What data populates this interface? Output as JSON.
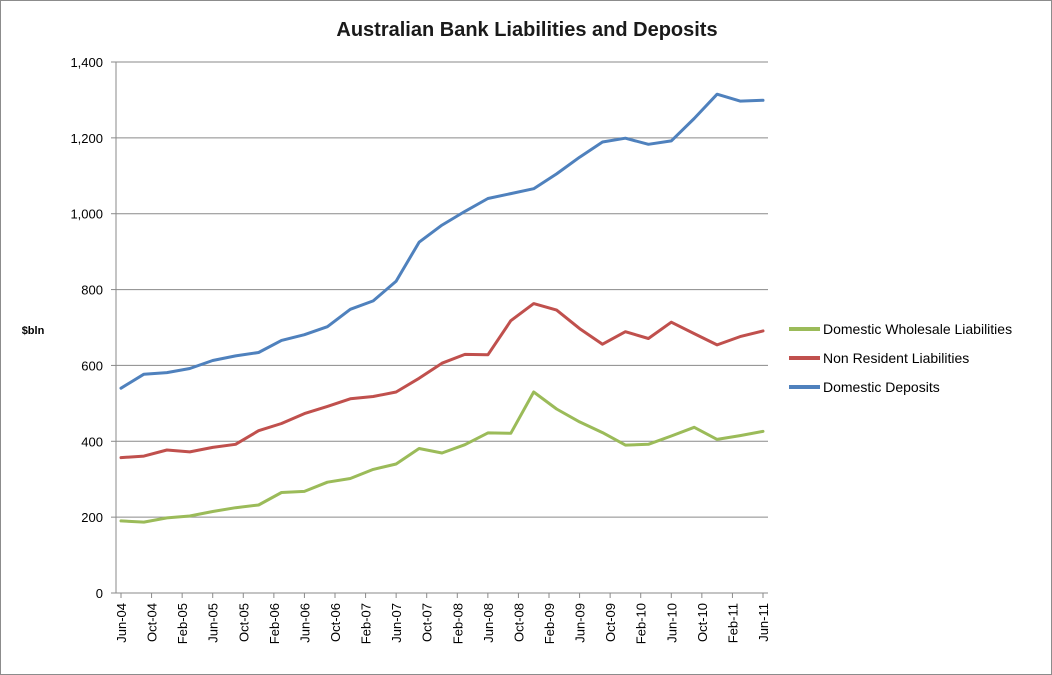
{
  "chart_data": {
    "type": "line",
    "title": "Australian Bank Liabilities and Deposits",
    "ylabel": "$bln",
    "xlabel": "",
    "ylim": [
      0,
      1400
    ],
    "yticks": [
      0,
      200,
      400,
      600,
      800,
      1000,
      1200,
      1400
    ],
    "ytick_labels": [
      "0",
      "200",
      "400",
      "600",
      "800",
      "1,000",
      "1,200",
      "1,400"
    ],
    "grid": true,
    "legend_position": "right",
    "categories": [
      "Jun-04",
      "Sep-04",
      "Dec-04",
      "Mar-05",
      "Jun-05",
      "Sep-05",
      "Dec-05",
      "Mar-06",
      "Jun-06",
      "Sep-06",
      "Dec-06",
      "Mar-07",
      "Jun-07",
      "Sep-07",
      "Dec-07",
      "Mar-08",
      "Jun-08",
      "Sep-08",
      "Dec-08",
      "Mar-09",
      "Jun-09",
      "Sep-09",
      "Dec-09",
      "Mar-10",
      "Jun-10",
      "Sep-10",
      "Dec-10",
      "Mar-11",
      "Jun-11"
    ],
    "xtick_labels": [
      "Jun-04",
      "Oct-04",
      "Feb-05",
      "Jun-05",
      "Oct-05",
      "Feb-06",
      "Jun-06",
      "Oct-06",
      "Feb-07",
      "Jun-07",
      "Oct-07",
      "Feb-08",
      "Jun-08",
      "Oct-08",
      "Feb-09",
      "Jun-09",
      "Oct-09",
      "Feb-10",
      "Jun-10",
      "Oct-10",
      "Feb-11",
      "Jun-11"
    ],
    "xtick_positions": [
      0,
      1.333,
      2.667,
      4,
      5.333,
      6.667,
      8,
      9.333,
      10.667,
      12,
      13.333,
      14.667,
      16,
      17.333,
      18.667,
      20,
      21.333,
      22.667,
      24,
      25.333,
      26.667,
      28
    ],
    "series": [
      {
        "name": "Domestic Wholesale Liabilities",
        "color": "#9bbb59",
        "values": [
          190,
          187,
          198,
          203,
          215,
          225,
          232,
          265,
          268,
          292,
          302,
          326,
          340,
          381,
          369,
          391,
          422,
          421,
          530,
          485,
          451,
          423,
          390,
          392,
          414,
          437,
          405,
          415,
          426
        ]
      },
      {
        "name": "Non Resident Liabilities",
        "color": "#c0504d",
        "values": [
          357,
          361,
          377,
          372,
          384,
          392,
          428,
          447,
          473,
          492,
          512,
          518,
          530,
          566,
          606,
          629,
          628,
          718,
          763,
          746,
          697,
          656,
          689,
          671,
          714,
          684,
          654,
          676,
          691
        ]
      },
      {
        "name": "Domestic Deposits",
        "color": "#4f81bd",
        "values": [
          540,
          577,
          581,
          592,
          613,
          625,
          634,
          666,
          681,
          702,
          748,
          770,
          822,
          925,
          970,
          1006,
          1040,
          1053,
          1066,
          1105,
          1149,
          1189,
          1199,
          1183,
          1192,
          1251,
          1315,
          1297,
          1299
        ]
      }
    ],
    "legend_order": [
      "Domestic Wholesale Liabilities",
      "Non Resident Liabilities",
      "Domestic Deposits"
    ]
  }
}
